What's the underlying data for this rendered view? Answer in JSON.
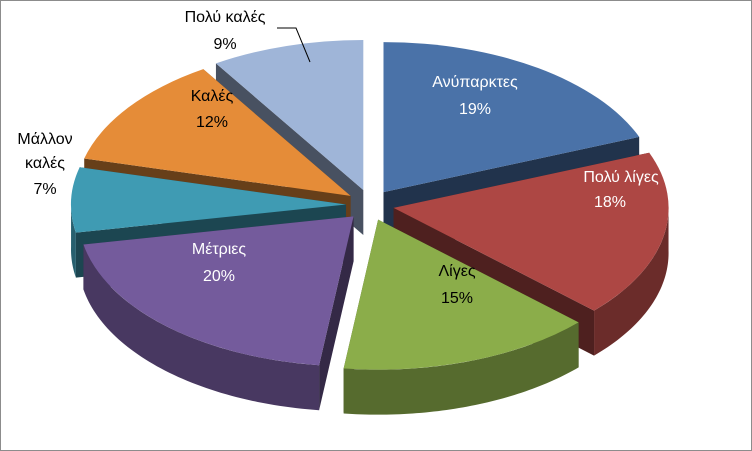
{
  "chart_data": {
    "type": "pie",
    "style": "3d-exploded",
    "title": "",
    "legend": "none",
    "slices": [
      {
        "label": "Ανύπαρκτες",
        "value": 19,
        "percent_label": "19%",
        "color": "#4a72a8",
        "label_color": "#ffffff"
      },
      {
        "label": "Πολύ λίγες",
        "value": 18,
        "percent_label": "18%",
        "color": "#ad4744",
        "label_color": "#ffffff"
      },
      {
        "label": "Λίγες",
        "value": 15,
        "percent_label": "15%",
        "color": "#8bad4a",
        "label_color": "#000000"
      },
      {
        "label": "Μέτριες",
        "value": 20,
        "percent_label": "20%",
        "color": "#745b9c",
        "label_color": "#ffffff"
      },
      {
        "label": "Μάλλον καλές",
        "value": 7,
        "percent_label": "7%",
        "color": "#3f9bb3",
        "label_color": "#000000"
      },
      {
        "label": "Καλές",
        "value": 12,
        "percent_label": "12%",
        "color": "#e58c38",
        "label_color": "#000000"
      },
      {
        "label": "Πολύ καλές",
        "value": 9,
        "percent_label": "9%",
        "color": "#9fb5d8",
        "label_color": "#000000"
      }
    ]
  }
}
